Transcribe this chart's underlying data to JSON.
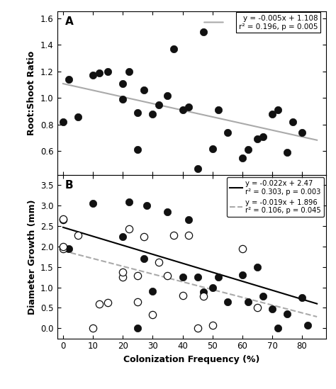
{
  "panel_A": {
    "label": "A",
    "scatter_x": [
      0,
      2,
      5,
      10,
      12,
      15,
      20,
      20,
      22,
      25,
      25,
      27,
      30,
      32,
      35,
      37,
      40,
      42,
      45,
      47,
      50,
      52,
      55,
      60,
      62,
      65,
      67,
      70,
      72,
      75,
      77,
      80
    ],
    "scatter_y": [
      0.82,
      1.14,
      0.86,
      1.17,
      1.19,
      1.2,
      0.99,
      1.11,
      1.2,
      0.61,
      0.89,
      1.06,
      0.88,
      0.95,
      1.02,
      1.37,
      0.91,
      0.93,
      0.47,
      1.5,
      0.62,
      0.91,
      0.74,
      0.55,
      0.61,
      0.69,
      0.71,
      0.88,
      0.91,
      0.59,
      0.82,
      0.74
    ],
    "line_slope": -0.005,
    "line_intercept": 1.108,
    "line_color": "#aaaaaa",
    "line_style": "-",
    "eq_text": "y = -0.005x + 1.108",
    "r2_text": "r² = 0.196, p = 0.005",
    "ylabel": "Root:Shoot Ratio",
    "ylim": [
      0.42,
      1.65
    ],
    "yticks": [
      0.6,
      0.8,
      1.0,
      1.2,
      1.4,
      1.6
    ]
  },
  "panel_B": {
    "label": "B",
    "scatter_filled_x": [
      2,
      10,
      20,
      22,
      25,
      27,
      28,
      30,
      35,
      40,
      42,
      45,
      47,
      50,
      52,
      55,
      60,
      62,
      65,
      67,
      70,
      72,
      75,
      80,
      82
    ],
    "scatter_filled_y": [
      1.95,
      3.05,
      2.25,
      3.1,
      0.0,
      1.7,
      3.0,
      0.9,
      2.85,
      1.25,
      2.65,
      1.25,
      0.88,
      1.0,
      1.25,
      0.65,
      1.3,
      0.65,
      1.5,
      0.79,
      0.47,
      0.0,
      0.35,
      0.75,
      0.08
    ],
    "scatter_open_x": [
      0,
      0,
      0,
      0,
      5,
      10,
      12,
      15,
      20,
      20,
      22,
      25,
      25,
      27,
      30,
      32,
      35,
      37,
      40,
      42,
      45,
      47,
      50,
      60,
      65
    ],
    "scatter_open_y": [
      1.95,
      2.0,
      2.65,
      2.67,
      2.27,
      0.0,
      0.6,
      0.63,
      1.25,
      1.38,
      2.43,
      0.64,
      1.28,
      2.25,
      0.33,
      1.62,
      1.28,
      2.27,
      0.8,
      2.27,
      0.0,
      0.78,
      0.07,
      1.95,
      0.5
    ],
    "line_solid_slope": -0.022,
    "line_solid_intercept": 2.47,
    "line_solid_color": "#000000",
    "line_dashed_slope": -0.019,
    "line_dashed_intercept": 1.896,
    "line_dashed_color": "#aaaaaa",
    "eq_solid_text": "y = -0.022x + 2.47",
    "r2_solid_text": "r² = 0.303, p = 0.003",
    "eq_dashed_text": "y = -0.019x + 1.896",
    "r2_dashed_text": "r² = 0.106, p = 0.045",
    "ylabel": "Diameter Growth (mm)",
    "xlabel": "Colonization Frequency (%)",
    "ylim": [
      -0.25,
      3.75
    ],
    "yticks": [
      0.0,
      0.5,
      1.0,
      1.5,
      2.0,
      2.5,
      3.0,
      3.5
    ]
  },
  "xlim": [
    -2,
    88
  ],
  "xticks": [
    0,
    10,
    20,
    30,
    40,
    50,
    60,
    70,
    80
  ],
  "marker_size": 55,
  "background_color": "#ffffff"
}
